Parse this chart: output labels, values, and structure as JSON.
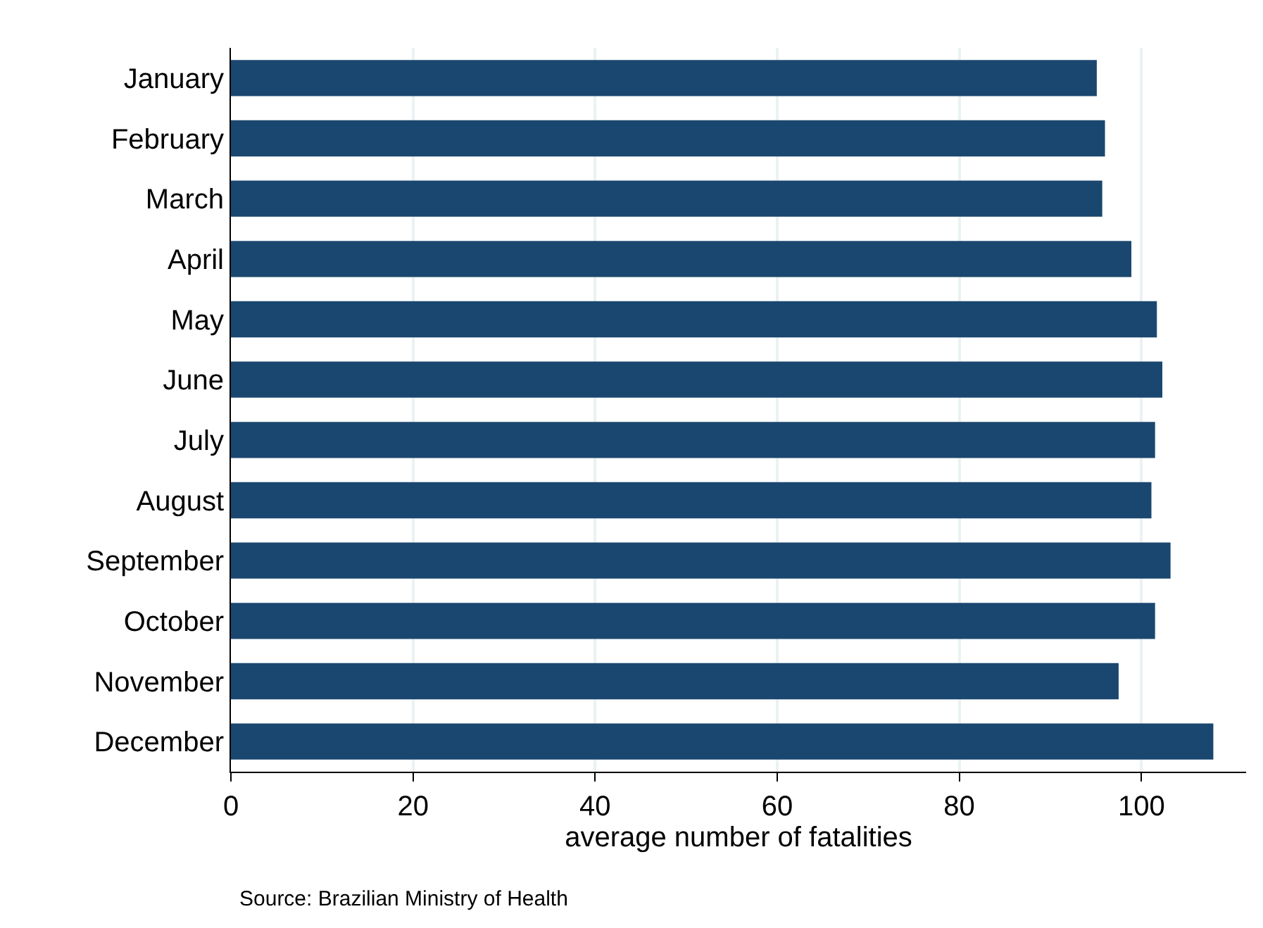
{
  "chart_data": {
    "type": "bar",
    "orientation": "horizontal",
    "xlabel": "average number of fatalities",
    "categories": [
      "January",
      "February",
      "March",
      "April",
      "May",
      "June",
      "July",
      "August",
      "September",
      "October",
      "November",
      "December"
    ],
    "series": [
      {
        "color": "#1a476f",
        "values": [
          95.1,
          96.0,
          95.7,
          98.9,
          101.7,
          102.3,
          101.5,
          101.1,
          103.2,
          101.5,
          97.5,
          107.9
        ]
      }
    ],
    "xlim": [
      0,
      111.5
    ],
    "xticks": [
      0,
      20,
      40,
      60,
      80,
      100
    ],
    "grid": "x",
    "annotations": [
      "Source: Brazilian Ministry of Health"
    ]
  }
}
